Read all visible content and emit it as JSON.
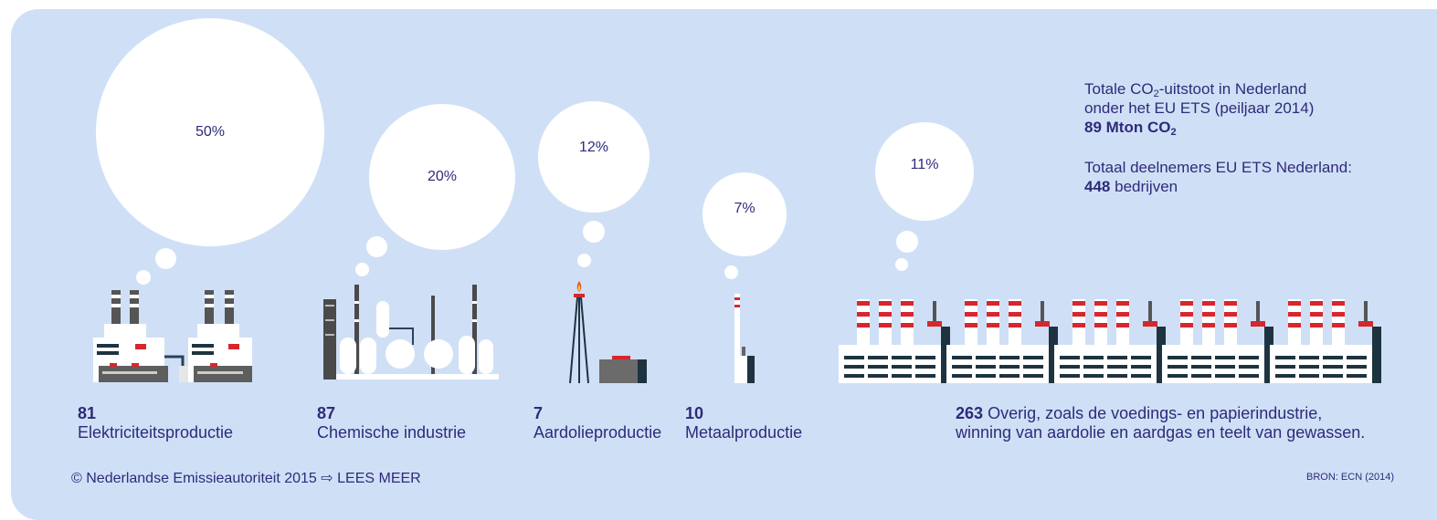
{
  "sectors": [
    {
      "key": "elektriciteit",
      "percent": "50%",
      "count": "81",
      "name": "Elektriciteitsproductie"
    },
    {
      "key": "chemie",
      "percent": "20%",
      "count": "87",
      "name": "Chemische industrie"
    },
    {
      "key": "aardolie",
      "percent": "12%",
      "count": "7",
      "name": "Aardolieproductie"
    },
    {
      "key": "metaal",
      "percent": "7%",
      "count": "10",
      "name": "Metaalproductie"
    },
    {
      "key": "overig",
      "percent": "11%",
      "count": "263",
      "name_line1": "Overig, zoals de voedings- en papierindustrie,",
      "name_line2": "winning van aardolie en aardgas en teelt van gewassen."
    }
  ],
  "info": {
    "emission_line1_pre": "Totale CO",
    "emission_line1_sub": "2",
    "emission_line1_post": "-uitstoot in Nederland",
    "emission_line2": "onder het EU ETS (peiljaar 2014)",
    "emission_value": "89 Mton CO",
    "emission_value_sub": "2",
    "participants_line": "Totaal deelnemers EU ETS Nederland:",
    "participants_value": "448",
    "participants_unit": "bedrijven"
  },
  "footer": {
    "copyright": "© Nederlandse Emissieautoriteit 2015",
    "arrow": "⇨",
    "link": "LEES MEER",
    "source": "BRON: ECN (2014)"
  },
  "colors": {
    "background": "#cfe0f6",
    "text": "#2e2a7a",
    "accent_red": "#d7262d",
    "dark": "#1e3340",
    "grey": "#6b6b6b"
  }
}
